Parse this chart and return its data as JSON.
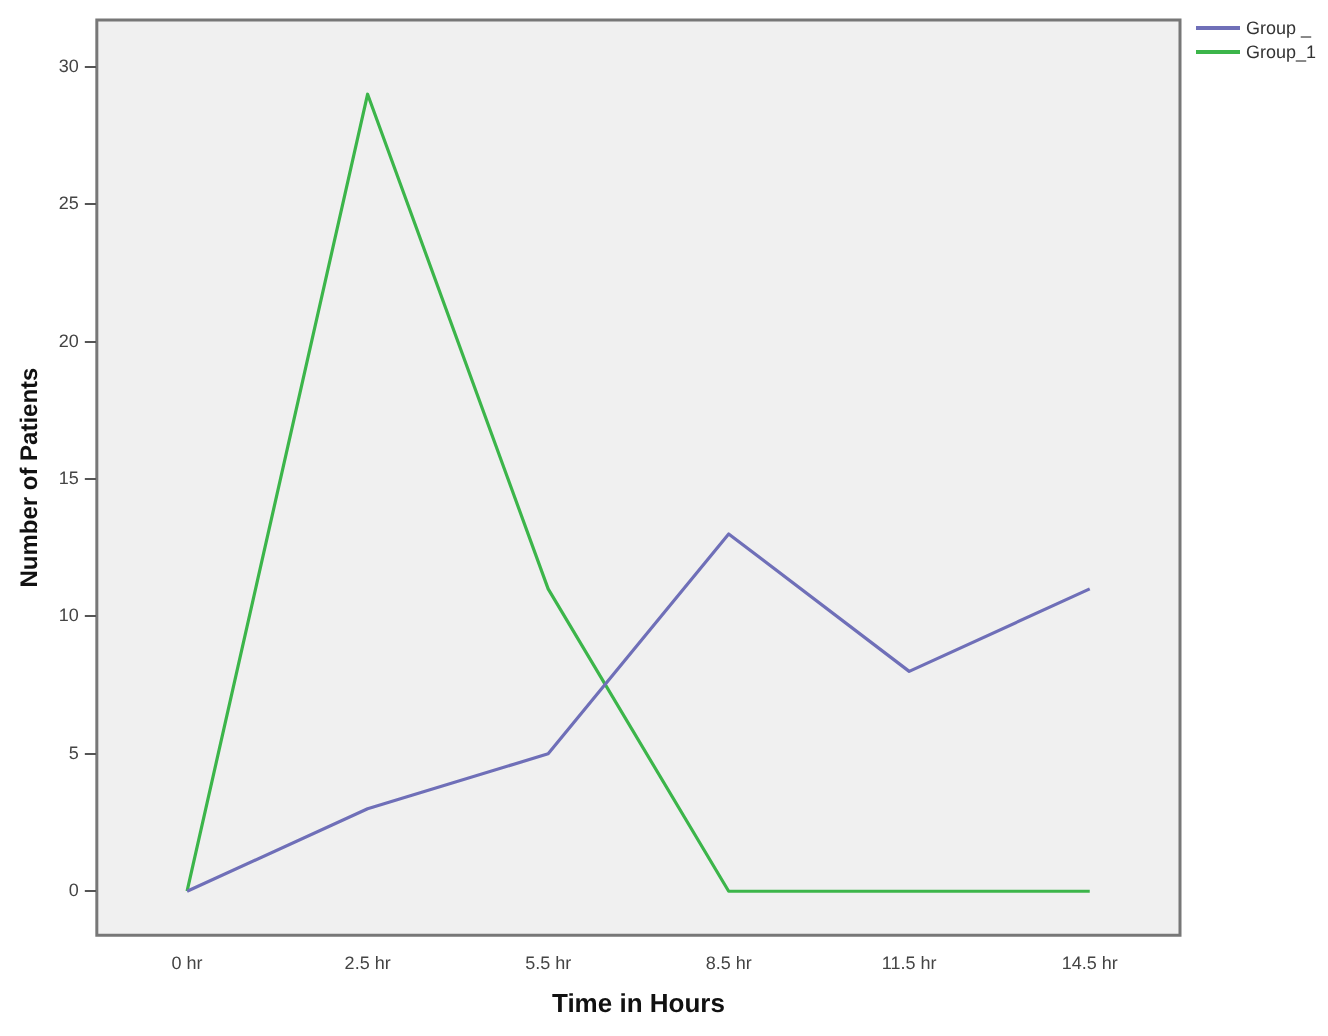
{
  "chart_data": {
    "type": "line",
    "xlabel": "Time in Hours",
    "ylabel": "Number of Patients",
    "categories": [
      "0 hr",
      "2.5 hr",
      "5.5 hr",
      "8.5 hr",
      "11.5 hr",
      "14.5 hr"
    ],
    "series": [
      {
        "name": "Group _",
        "color": "#6f6fb8",
        "values": [
          0,
          3,
          5,
          13,
          8,
          11
        ]
      },
      {
        "name": "Group_1",
        "color": "#3cb54a",
        "values": [
          0,
          29,
          11,
          0,
          0,
          0
        ]
      }
    ],
    "ylim": [
      -1.6,
      31.7
    ],
    "yticks": [
      0,
      5,
      10,
      15,
      20,
      25,
      30
    ],
    "grid": false,
    "legend": "top right",
    "marker": "none",
    "line_style": "solid"
  }
}
